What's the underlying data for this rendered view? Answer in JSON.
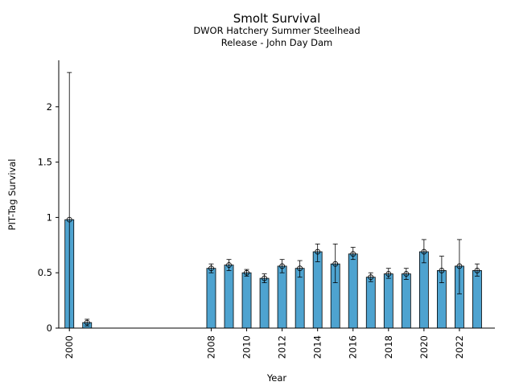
{
  "chart_data": {
    "type": "bar",
    "title": "Smolt Survival",
    "subtitle_lines": [
      "DWOR Hatchery Summer Steelhead",
      "Release - John Day Dam"
    ],
    "xlabel": "Year",
    "ylabel": "PIT-Tag Survival",
    "ylim": [
      0,
      2.42
    ],
    "xlim": [
      1999.4,
      2024.0
    ],
    "yticks": [
      "0",
      "0.5",
      "1",
      "1.5",
      "2"
    ],
    "xticks": [
      "2000",
      "2008",
      "2010",
      "2012",
      "2014",
      "2016",
      "2018",
      "2020",
      "2022"
    ],
    "bar_color": "#4ea3d0",
    "grid": false,
    "points": [
      {
        "year": 2000,
        "value": 0.98,
        "low": 0.0,
        "high": 2.31
      },
      {
        "year": 2001,
        "value": 0.05,
        "low": 0.02,
        "high": 0.08
      },
      {
        "year": 2008,
        "value": 0.54,
        "low": 0.5,
        "high": 0.58
      },
      {
        "year": 2009,
        "value": 0.57,
        "low": 0.52,
        "high": 0.62
      },
      {
        "year": 2010,
        "value": 0.5,
        "low": 0.47,
        "high": 0.53
      },
      {
        "year": 2011,
        "value": 0.45,
        "low": 0.41,
        "high": 0.49
      },
      {
        "year": 2012,
        "value": 0.56,
        "low": 0.5,
        "high": 0.62
      },
      {
        "year": 2013,
        "value": 0.54,
        "low": 0.46,
        "high": 0.61
      },
      {
        "year": 2014,
        "value": 0.69,
        "low": 0.6,
        "high": 0.76
      },
      {
        "year": 2015,
        "value": 0.58,
        "low": 0.41,
        "high": 0.76
      },
      {
        "year": 2016,
        "value": 0.67,
        "low": 0.62,
        "high": 0.73
      },
      {
        "year": 2017,
        "value": 0.46,
        "low": 0.42,
        "high": 0.5
      },
      {
        "year": 2018,
        "value": 0.49,
        "low": 0.45,
        "high": 0.54
      },
      {
        "year": 2019,
        "value": 0.49,
        "low": 0.44,
        "high": 0.54
      },
      {
        "year": 2020,
        "value": 0.69,
        "low": 0.59,
        "high": 0.8
      },
      {
        "year": 2021,
        "value": 0.52,
        "low": 0.41,
        "high": 0.65
      },
      {
        "year": 2022,
        "value": 0.56,
        "low": 0.31,
        "high": 0.8
      },
      {
        "year": 2023,
        "value": 0.52,
        "low": 0.47,
        "high": 0.58
      }
    ]
  }
}
